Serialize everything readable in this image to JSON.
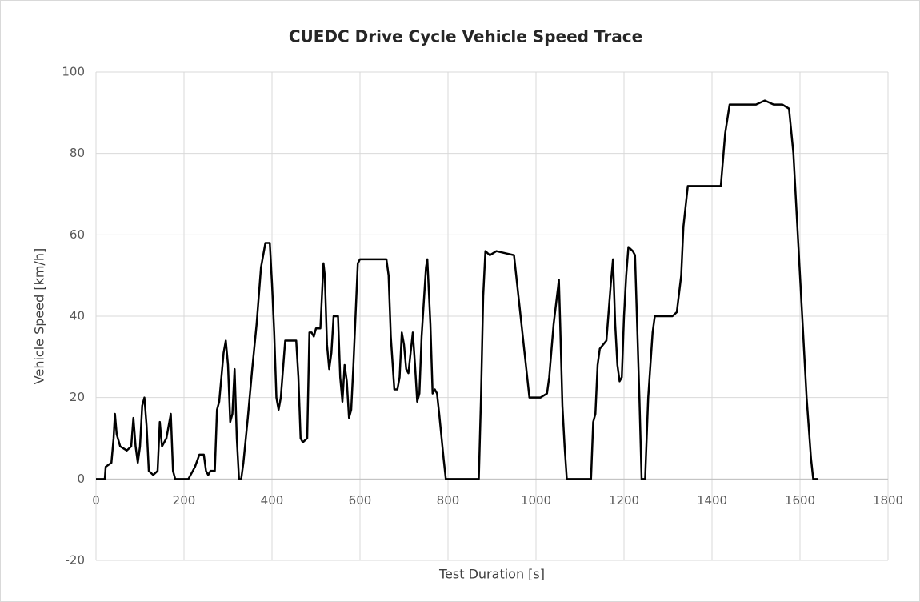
{
  "chart_data": {
    "type": "line",
    "title": "CUEDC Drive Cycle Vehicle Speed Trace",
    "x_label": "Test Duration [s]",
    "y_label": "Vehicle Speed  [km/h]",
    "xlim": [
      0,
      1800
    ],
    "xticks": [
      0,
      200,
      400,
      600,
      800,
      1000,
      1200,
      1400,
      1600,
      1800
    ],
    "ylim": [
      -20,
      100
    ],
    "yticks": [
      -20,
      0,
      20,
      40,
      60,
      80,
      100
    ],
    "grid": true,
    "series": [
      {
        "name": "Vehicle Speed",
        "color": "#000000",
        "x": [
          0,
          20,
          22,
          35,
          40,
          43,
          47,
          55,
          70,
          80,
          85,
          90,
          95,
          100,
          105,
          110,
          115,
          120,
          130,
          140,
          145,
          150,
          160,
          170,
          175,
          180,
          210,
          220,
          225,
          235,
          245,
          250,
          255,
          260,
          270,
          275,
          280,
          290,
          295,
          300,
          305,
          310,
          315,
          320,
          325,
          330,
          335,
          345,
          355,
          365,
          375,
          385,
          395,
          400,
          405,
          410,
          415,
          420,
          430,
          445,
          455,
          460,
          465,
          470,
          480,
          485,
          490,
          495,
          500,
          510,
          517,
          520,
          525,
          530,
          535,
          540,
          545,
          550,
          555,
          560,
          565,
          570,
          575,
          580,
          585,
          595,
          600,
          620,
          640,
          660,
          665,
          670,
          678,
          685,
          690,
          695,
          700,
          705,
          710,
          715,
          720,
          725,
          730,
          735,
          740,
          750,
          753,
          760,
          765,
          770,
          775,
          780,
          790,
          795,
          870,
          875,
          880,
          885,
          895,
          910,
          950,
          960,
          975,
          985,
          995,
          1010,
          1025,
          1030,
          1040,
          1050,
          1052,
          1055,
          1060,
          1065,
          1070,
          1125,
          1130,
          1135,
          1140,
          1145,
          1160,
          1170,
          1175,
          1180,
          1185,
          1190,
          1195,
          1200,
          1205,
          1210,
          1220,
          1225,
          1235,
          1240,
          1248,
          1255,
          1265,
          1270,
          1280,
          1300,
          1310,
          1320,
          1330,
          1335,
          1345,
          1360,
          1400,
          1420,
          1430,
          1440,
          1460,
          1500,
          1520,
          1540,
          1560,
          1575,
          1585,
          1595,
          1605,
          1615,
          1625,
          1630,
          1640
        ],
        "values": [
          0,
          0,
          3,
          4,
          10,
          16,
          11,
          8,
          7,
          8,
          15,
          8,
          4,
          8,
          18,
          20,
          13,
          2,
          1,
          2,
          14,
          8,
          10,
          16,
          2,
          0,
          0,
          2,
          3,
          6,
          6,
          2,
          1,
          2,
          2,
          17,
          19,
          31,
          34,
          28,
          14,
          16,
          27,
          10,
          0,
          0,
          4,
          15,
          27,
          38,
          52,
          58,
          58,
          48,
          36,
          20,
          17,
          20,
          34,
          34,
          34,
          25,
          10,
          9,
          10,
          36,
          36,
          35,
          37,
          37,
          53,
          50,
          33,
          27,
          31,
          40,
          40,
          40,
          25,
          19,
          28,
          24,
          15,
          17,
          28,
          53,
          54,
          54,
          54,
          54,
          50,
          35,
          22,
          22,
          25,
          36,
          33,
          27,
          26,
          31,
          36,
          28,
          19,
          21,
          35,
          52,
          54,
          38,
          21,
          22,
          21,
          16,
          5,
          0,
          0,
          20,
          45,
          56,
          55,
          56,
          55,
          45,
          30,
          20,
          20,
          20,
          21,
          25,
          38,
          47,
          49,
          38,
          18,
          8,
          0,
          0,
          14,
          16,
          28,
          32,
          34,
          48,
          54,
          38,
          28,
          24,
          25,
          40,
          50,
          57,
          56,
          55,
          20,
          0,
          0,
          20,
          36,
          40,
          40,
          40,
          40,
          41,
          50,
          62,
          72,
          72,
          72,
          72,
          85,
          92,
          92,
          92,
          93,
          92,
          92,
          91,
          80,
          60,
          40,
          20,
          5,
          0,
          0
        ]
      }
    ]
  }
}
